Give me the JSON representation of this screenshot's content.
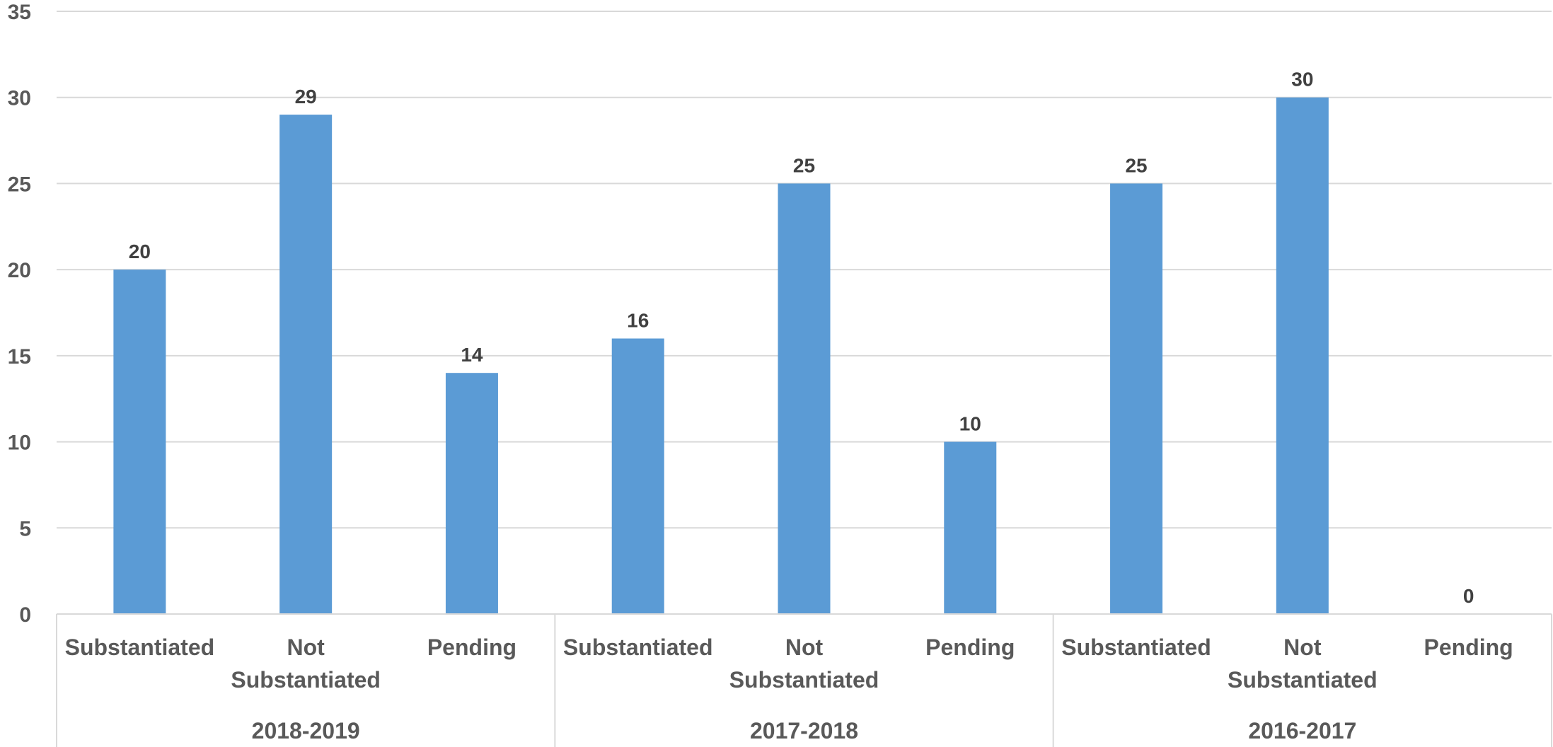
{
  "chart_data": {
    "type": "bar",
    "title": "",
    "xlabel": "",
    "ylabel": "",
    "ylim": [
      0,
      35
    ],
    "yticks": [
      0,
      5,
      10,
      15,
      20,
      25,
      30,
      35
    ],
    "grid": true,
    "bar_color": "#5b9bd5",
    "groups": [
      {
        "name": "2018-2019",
        "categories": [
          [
            "Substantiated"
          ],
          [
            "Not",
            "Substantiated"
          ],
          [
            "Pending"
          ]
        ],
        "values": [
          20,
          29,
          14
        ]
      },
      {
        "name": "2017-2018",
        "categories": [
          [
            "Substantiated"
          ],
          [
            "Not",
            "Substantiated"
          ],
          [
            "Pending"
          ]
        ],
        "values": [
          16,
          25,
          10
        ]
      },
      {
        "name": "2016-2017",
        "categories": [
          [
            "Substantiated"
          ],
          [
            "Not",
            "Substantiated"
          ],
          [
            "Pending"
          ]
        ],
        "values": [
          25,
          30,
          0
        ]
      }
    ]
  }
}
